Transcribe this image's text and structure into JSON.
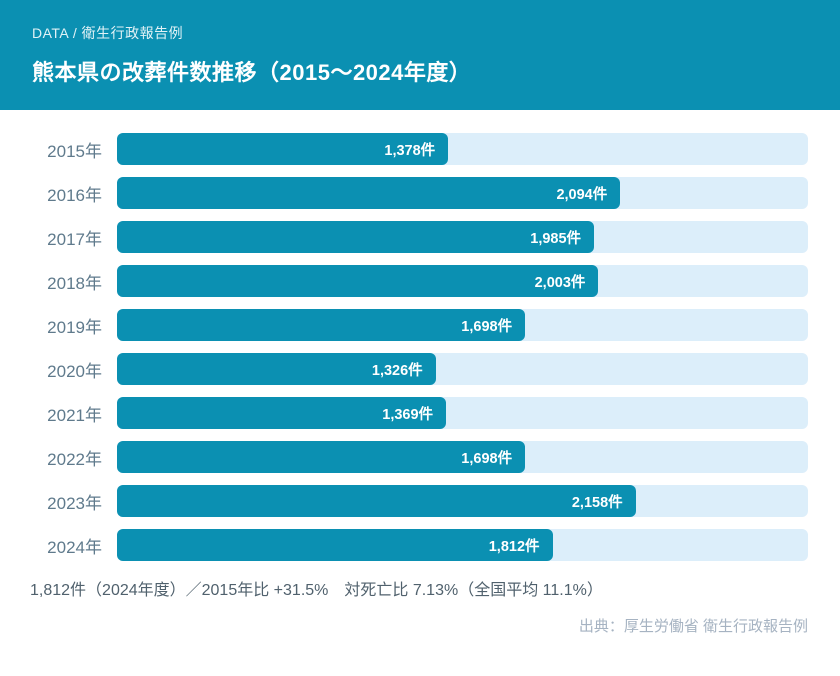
{
  "header": {
    "eyebrow": "DATA / 衛生行政報告例",
    "title": "熊本県の改葬件数推移（2015～2024年度）"
  },
  "chart_data": {
    "type": "bar",
    "orientation": "horizontal",
    "title": "熊本県の改葬件数推移（2015～2024年度）",
    "categories": [
      "2015年",
      "2016年",
      "2017年",
      "2018年",
      "2019年",
      "2020年",
      "2021年",
      "2022年",
      "2023年",
      "2024年"
    ],
    "values": [
      1378,
      2094,
      1985,
      2003,
      1698,
      1326,
      1369,
      1698,
      2158,
      1812
    ],
    "value_labels": [
      "1,378件",
      "2,094件",
      "1,985件",
      "2,003件",
      "1,698件",
      "1,326件",
      "1,369件",
      "1,698件",
      "2,158件",
      "1,812件"
    ],
    "unit": "件",
    "xlabel": "",
    "ylabel": "",
    "xlim": [
      0,
      2875
    ],
    "grid": false,
    "legend_position": "none",
    "bar_color": "#0b90b2",
    "track_color": "#dceefa"
  },
  "footer": {
    "summary": "1,812件（2024年度）／2015年比 +31.5%　対死亡比 7.13%（全国平均 11.1%）",
    "source": "出典：厚生労働省 衛生行政報告例"
  },
  "colors": {
    "accent": "#0b90b2",
    "track": "#dceefa",
    "year_label": "#5f7a8c",
    "summary_text": "#50616d",
    "source_text": "#a6b3c2",
    "header_bg": "#0b90b2"
  }
}
